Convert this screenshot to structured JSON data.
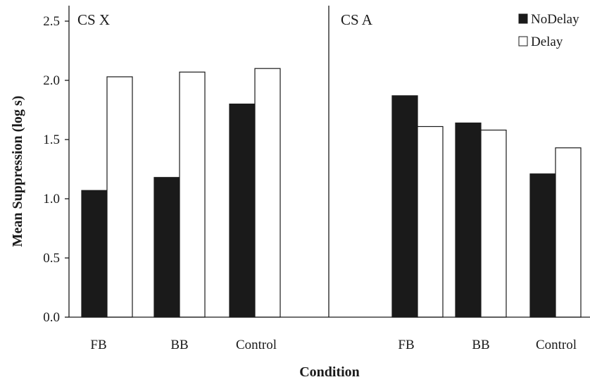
{
  "chart_data": {
    "type": "bar",
    "ylabel": "Mean Suppression (log s)",
    "xlabel": "Condition",
    "ylim": [
      0,
      2.5
    ],
    "yticks": [
      "0.0",
      "0.5",
      "1.0",
      "1.5",
      "2.0",
      "2.5"
    ],
    "legend": {
      "placement": "top-right",
      "entries": [
        {
          "name": "NoDelay",
          "color": "#1a1a1a"
        },
        {
          "name": "Delay",
          "color": "#ffffff"
        }
      ]
    },
    "panels": [
      {
        "label": "CS X",
        "categories": [
          "FB",
          "BB",
          "Control"
        ],
        "series": [
          {
            "name": "NoDelay",
            "values": [
              1.07,
              1.18,
              1.8
            ]
          },
          {
            "name": "Delay",
            "values": [
              2.03,
              2.07,
              2.1
            ]
          }
        ]
      },
      {
        "label": "CS A",
        "categories": [
          "FB",
          "BB",
          "Control"
        ],
        "series": [
          {
            "name": "NoDelay",
            "values": [
              1.87,
              1.64,
              1.21
            ]
          },
          {
            "name": "Delay",
            "values": [
              1.61,
              1.58,
              1.43
            ]
          }
        ]
      }
    ]
  }
}
